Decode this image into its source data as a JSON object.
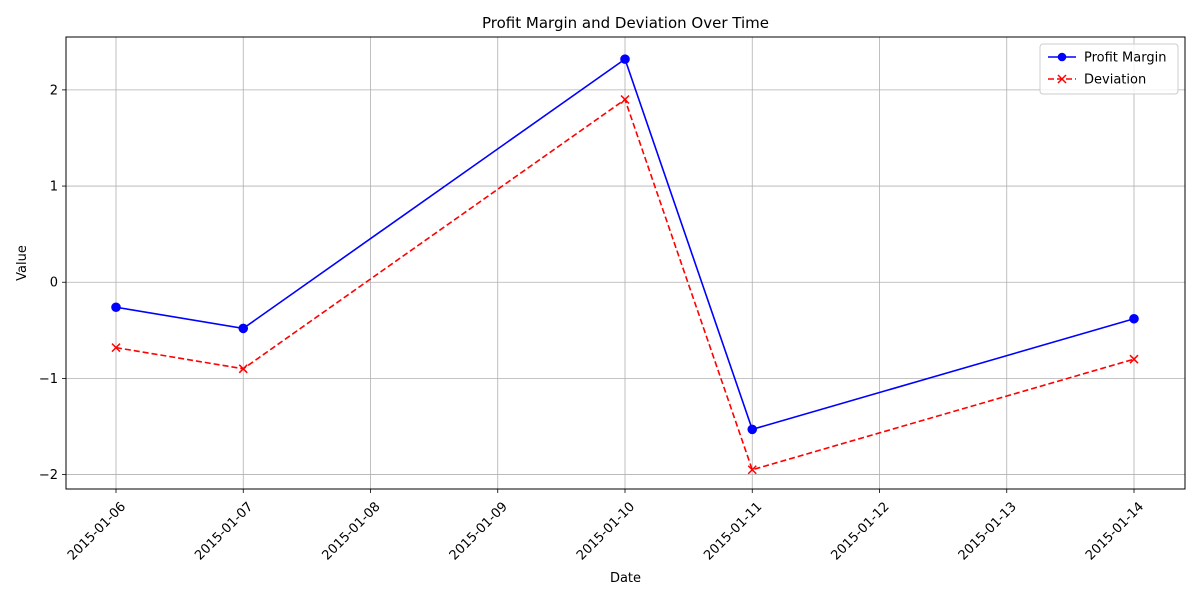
{
  "chart_data": {
    "type": "line",
    "title": "Profit Margin and Deviation Over Time",
    "xlabel": "Date",
    "ylabel": "Value",
    "x_ticks": [
      "2015-01-06",
      "2015-01-07",
      "2015-01-08",
      "2015-01-09",
      "2015-01-10",
      "2015-01-11",
      "2015-01-12",
      "2015-01-13",
      "2015-01-14"
    ],
    "y_ticks": [
      -2,
      -1,
      0,
      1,
      2
    ],
    "xlim": [
      "2015-01-06",
      "2015-01-14"
    ],
    "ylim": [
      -2.15,
      2.55
    ],
    "grid": true,
    "legend_position": "top-right",
    "x": [
      "2015-01-06",
      "2015-01-07",
      "2015-01-10",
      "2015-01-11",
      "2015-01-14"
    ],
    "series": [
      {
        "name": "Profit Margin",
        "values": [
          -0.26,
          -0.48,
          2.32,
          -1.53,
          -0.38
        ],
        "color": "#0000ff",
        "line_style": "solid",
        "marker": "circle"
      },
      {
        "name": "Deviation",
        "values": [
          -0.68,
          -0.9,
          1.9,
          -1.95,
          -0.8
        ],
        "color": "#ff0000",
        "line_style": "dashed",
        "marker": "x"
      }
    ]
  }
}
